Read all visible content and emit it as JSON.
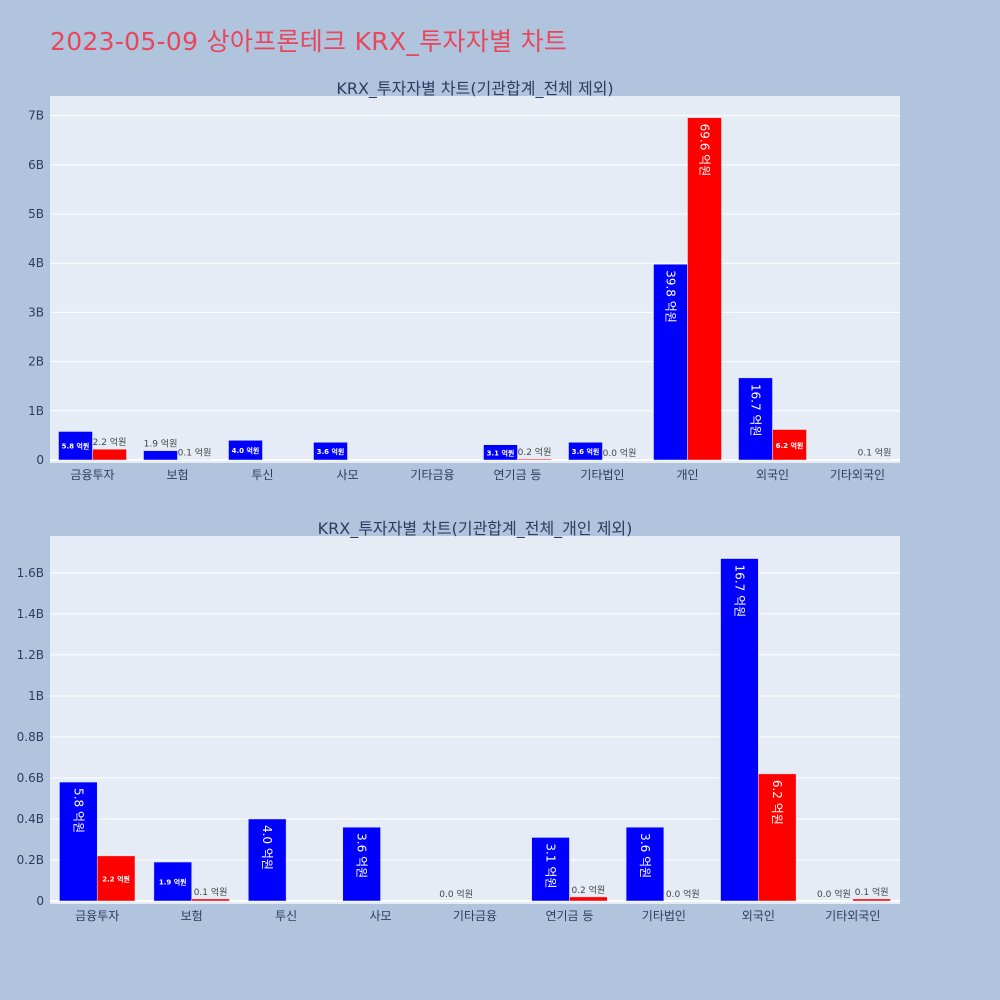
{
  "title": "2023-05-09 상아프론테크 KRX_투자자별 차트",
  "colors": {
    "page_bg": "#b0c4de",
    "plot_bg": "#e5ecf6",
    "buy": "#0000ff",
    "sell": "#ff0000",
    "title": "#e8465a"
  },
  "chart_data": [
    {
      "type": "bar",
      "title": "KRX_투자자별 차트(기관합계_전체 제외)",
      "categories": [
        "금융투자",
        "보험",
        "투신",
        "사모",
        "기타금융",
        "연기금 등",
        "기타법인",
        "개인",
        "외국인",
        "기타외국인"
      ],
      "series": [
        {
          "color": "#0000ff",
          "values": [
            580000000,
            190000000,
            400000000,
            360000000,
            null,
            310000000,
            360000000,
            3980000000,
            1670000000,
            null
          ],
          "labels": [
            "5.8 억원",
            "1.9 억원",
            "4.0 억원",
            "3.6 억원",
            "",
            "3.1 억원",
            "3.6 억원",
            "39.8 억원",
            "16.7 억원",
            ""
          ]
        },
        {
          "color": "#ff0000",
          "values": [
            220000000,
            10000000,
            null,
            null,
            null,
            20000000,
            0,
            6960000000,
            620000000,
            10000000
          ],
          "labels": [
            "2.2 억원",
            "0.1 억원",
            "",
            "",
            "",
            "0.2 억원",
            "0.0 억원",
            "69.6 억원",
            "6.2 억원",
            "0.1 억원"
          ]
        }
      ],
      "ylim": [
        0,
        7400000000
      ],
      "yticks": [
        0,
        1000000000,
        2000000000,
        3000000000,
        4000000000,
        5000000000,
        6000000000,
        7000000000
      ],
      "ytick_labels": [
        "0",
        "1B",
        "2B",
        "3B",
        "4B",
        "5B",
        "6B",
        "7B"
      ],
      "grid": true
    },
    {
      "type": "bar",
      "title": "KRX_투자자별 차트(기관합계_전체_개인 제외)",
      "categories": [
        "금융투자",
        "보험",
        "투신",
        "사모",
        "기타금융",
        "연기금 등",
        "기타법인",
        "외국인",
        "기타외국인"
      ],
      "series": [
        {
          "color": "#0000ff",
          "values": [
            580000000,
            190000000,
            400000000,
            360000000,
            0,
            310000000,
            360000000,
            1670000000,
            0
          ],
          "labels": [
            "5.8 억원",
            "1.9 억원",
            "4.0 억원",
            "3.6 억원",
            "0.0 억원",
            "3.1 억원",
            "3.6 억원",
            "16.7 억원",
            "0.0 억원"
          ]
        },
        {
          "color": "#ff0000",
          "values": [
            220000000,
            10000000,
            null,
            null,
            null,
            20000000,
            0,
            620000000,
            10000000
          ],
          "labels": [
            "2.2 억원",
            "0.1 억원",
            "",
            "",
            "",
            "0.2 억원",
            "0.0 억원",
            "6.2 억원",
            "0.1 억원"
          ]
        }
      ],
      "ylim": [
        0,
        1780000000
      ],
      "yticks": [
        0,
        200000000,
        400000000,
        600000000,
        800000000,
        1000000000,
        1200000000,
        1400000000,
        1600000000
      ],
      "ytick_labels": [
        "0",
        "0.2B",
        "0.4B",
        "0.6B",
        "0.8B",
        "1B",
        "1.2B",
        "1.4B",
        "1.6B"
      ],
      "grid": true
    }
  ]
}
